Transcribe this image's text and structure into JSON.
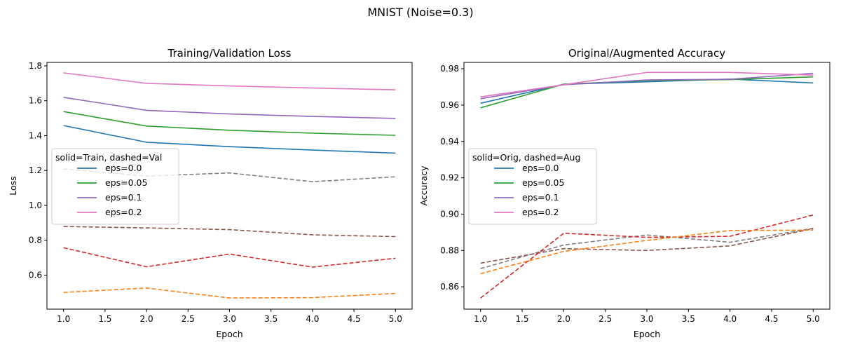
{
  "suptitle": "MNIST (Noise=0.3)",
  "chart_data": [
    {
      "type": "line",
      "title": "Training/Validation Loss",
      "xlabel": "Epoch",
      "ylabel": "Loss",
      "x": [
        1,
        2,
        3,
        4,
        5
      ],
      "xlim": [
        0.8,
        5.2
      ],
      "ylim": [
        0.405,
        1.82
      ],
      "xticks": [
        "1.0",
        "1.5",
        "2.0",
        "2.5",
        "3.0",
        "3.5",
        "4.0",
        "4.5",
        "5.0"
      ],
      "yticks": [
        "0.6",
        "0.8",
        "1.0",
        "1.2",
        "1.4",
        "1.6",
        "1.8"
      ],
      "grid": false,
      "legend": {
        "title": "solid=Train, dashed=Val",
        "placement": "center-left",
        "entries": [
          "eps=0.0",
          "eps=0.05",
          "eps=0.1",
          "eps=0.2"
        ],
        "colors": [
          "#1f77b4",
          "#2ca02c",
          "#9467bd",
          "#e377c2"
        ]
      },
      "series": [
        {
          "style": "solid",
          "color": "#1f77b4",
          "values": [
            1.458,
            1.362,
            1.337,
            1.317,
            1.3
          ]
        },
        {
          "style": "solid",
          "color": "#2ca02c",
          "values": [
            1.538,
            1.455,
            1.431,
            1.414,
            1.402
          ]
        },
        {
          "style": "solid",
          "color": "#9467bd",
          "values": [
            1.62,
            1.545,
            1.524,
            1.51,
            1.499
          ]
        },
        {
          "style": "solid",
          "color": "#e377c2",
          "values": [
            1.76,
            1.7,
            1.685,
            1.673,
            1.663
          ]
        },
        {
          "style": "dashed",
          "color": "#7f7f7f",
          "values": [
            1.208,
            1.168,
            1.186,
            1.136,
            1.164
          ]
        },
        {
          "style": "dashed",
          "color": "#8c564b",
          "values": [
            0.879,
            0.871,
            0.861,
            0.831,
            0.821
          ]
        },
        {
          "style": "dashed",
          "color": "#d62728",
          "values": [
            0.757,
            0.648,
            0.721,
            0.646,
            0.697
          ]
        },
        {
          "style": "dashed",
          "color": "#ff7f0e",
          "values": [
            0.501,
            0.526,
            0.469,
            0.471,
            0.495
          ]
        }
      ]
    },
    {
      "type": "line",
      "title": "Original/Augmented Accuracy",
      "xlabel": "Epoch",
      "ylabel": "Accuracy",
      "x": [
        1,
        2,
        3,
        4,
        5
      ],
      "xlim": [
        0.8,
        5.2
      ],
      "ylim": [
        0.8477,
        0.9835
      ],
      "xticks": [
        "1.0",
        "1.5",
        "2.0",
        "2.5",
        "3.0",
        "3.5",
        "4.0",
        "4.5",
        "5.0"
      ],
      "yticks": [
        "0.86",
        "0.88",
        "0.90",
        "0.92",
        "0.94",
        "0.96",
        "0.98"
      ],
      "grid": false,
      "legend": {
        "title": "solid=Orig, dashed=Aug",
        "placement": "center-left",
        "entries": [
          "eps=0.0",
          "eps=0.05",
          "eps=0.1",
          "eps=0.2"
        ],
        "colors": [
          "#1f77b4",
          "#2ca02c",
          "#9467bd",
          "#e377c2"
        ]
      },
      "series": [
        {
          "style": "solid",
          "color": "#1f77b4",
          "values": [
            0.961,
            0.9715,
            0.9728,
            0.9743,
            0.9722
          ]
        },
        {
          "style": "solid",
          "color": "#2ca02c",
          "values": [
            0.9585,
            0.9715,
            0.9735,
            0.974,
            0.9755
          ]
        },
        {
          "style": "solid",
          "color": "#9467bd",
          "values": [
            0.9635,
            0.9712,
            0.9738,
            0.9742,
            0.9775
          ]
        },
        {
          "style": "solid",
          "color": "#e377c2",
          "values": [
            0.9645,
            0.9712,
            0.978,
            0.978,
            0.9765
          ]
        },
        {
          "style": "dashed",
          "color": "#7f7f7f",
          "values": [
            0.87,
            0.883,
            0.8885,
            0.8845,
            0.8922
          ]
        },
        {
          "style": "dashed",
          "color": "#8c564b",
          "values": [
            0.873,
            0.881,
            0.88,
            0.8825,
            0.892
          ]
        },
        {
          "style": "dashed",
          "color": "#d62728",
          "values": [
            0.8538,
            0.8895,
            0.8872,
            0.8878,
            0.8995
          ]
        },
        {
          "style": "dashed",
          "color": "#ff7f0e",
          "values": [
            0.8672,
            0.8795,
            0.8855,
            0.891,
            0.8912
          ]
        }
      ]
    }
  ]
}
